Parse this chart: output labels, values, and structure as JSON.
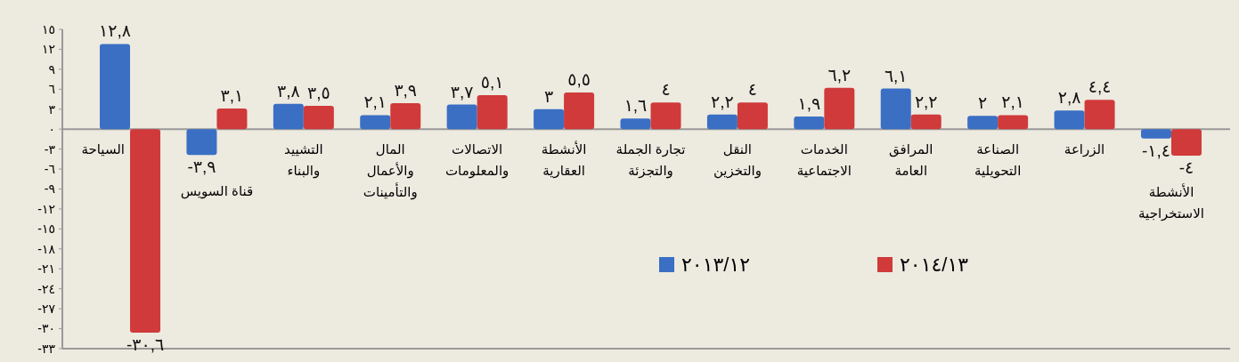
{
  "chart_data": {
    "type": "bar",
    "categories": [
      "السياحة",
      "قناة السويس",
      "التشييد والبناء",
      "المال والأعمال والتأمينات",
      "الاتصالات والمعلومات",
      "الأنشطة العقارية",
      "تجارة الجملة والتجزئة",
      "النقل والتخزين",
      "الخدمات الاجتماعية",
      "المرافق العامة",
      "الصناعة التحويلية",
      "الزراعة",
      "الأنشطة الاستخراجية"
    ],
    "series": [
      {
        "name": "٢٠١٣/١٢",
        "color": "#3a6fc4",
        "values": [
          12.8,
          -3.9,
          3.8,
          2.1,
          3.7,
          3,
          1.6,
          2.2,
          1.9,
          6.1,
          2,
          2.8,
          -1.4
        ],
        "value_labels": [
          "١٢,٨",
          "-٣,٩",
          "٣,٨",
          "٢,١",
          "٣,٧",
          "٣",
          "١,٦",
          "٢,٢",
          "١,٩",
          "٦,١",
          "٢",
          "٢,٨",
          "-١,٤"
        ]
      },
      {
        "name": "٢٠١٤/١٣",
        "color": "#d03a3a",
        "values": [
          -30.6,
          3.1,
          3.5,
          3.9,
          5.1,
          5.5,
          4,
          4,
          6.2,
          2.2,
          2.1,
          4.4,
          -4
        ],
        "value_labels": [
          "-٣٠,٦",
          "٣,١",
          "٣,٥",
          "٣,٩",
          "٥,١",
          "٥,٥",
          "٤",
          "٤",
          "٦,٢",
          "٢,٢",
          "٢,١",
          "٤,٤",
          "-٤"
        ]
      }
    ],
    "ylim": [
      -33,
      15
    ],
    "yticks": [
      {
        "value": 15,
        "label": "١٥"
      },
      {
        "value": 12,
        "label": "١٢"
      },
      {
        "value": 9,
        "label": "٩"
      },
      {
        "value": 6,
        "label": "٦"
      },
      {
        "value": 3,
        "label": "٣"
      },
      {
        "value": 0,
        "label": "٠"
      },
      {
        "value": -3,
        "label": "-٣"
      },
      {
        "value": -6,
        "label": "-٦"
      },
      {
        "value": -9,
        "label": "-٩"
      },
      {
        "value": -12,
        "label": "-١٢"
      },
      {
        "value": -15,
        "label": "-١٥"
      },
      {
        "value": -18,
        "label": "-١٨"
      },
      {
        "value": -21,
        "label": "-٢١"
      },
      {
        "value": -24,
        "label": "-٢٤"
      },
      {
        "value": -27,
        "label": "-٢٧"
      },
      {
        "value": -30,
        "label": "-٣٠"
      },
      {
        "value": -33,
        "label": "-٣٣"
      }
    ],
    "grid": false,
    "legend": "bottom"
  }
}
